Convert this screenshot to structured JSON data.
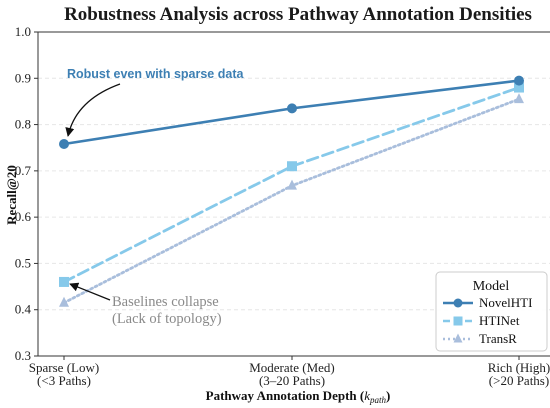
{
  "chart_data": {
    "type": "line",
    "title": "Robustness Analysis across Pathway Annotation Densities",
    "ylabel": "Recall@20",
    "xlabel_main": "Pathway Annotation Depth (",
    "xlabel_var": "k",
    "xlabel_sub": "path",
    "xlabel_close": ")",
    "ylim": [
      0.3,
      1.0
    ],
    "yticks": [
      "0.3",
      "0.4",
      "0.5",
      "0.6",
      "0.7",
      "0.8",
      "0.9",
      "1.0"
    ],
    "categories": [
      [
        "Sparse (Low)",
        "(<3 Paths)"
      ],
      [
        "Moderate (Med)",
        "(3–20 Paths)"
      ],
      [
        "Rich (High)",
        "(>20 Paths)"
      ]
    ],
    "grid": "horizontal dashed",
    "legend_title": "Model",
    "legend_position": "lower-right",
    "series": [
      {
        "name": "NovelHTI",
        "values": [
          0.758,
          0.835,
          0.895
        ],
        "color": "#3d7fb3",
        "marker": "circle",
        "style": "solid"
      },
      {
        "name": "HTINet",
        "values": [
          0.46,
          0.71,
          0.88
        ],
        "color": "#86c9ea",
        "marker": "square",
        "style": "dashed"
      },
      {
        "name": "TransR",
        "values": [
          0.415,
          0.668,
          0.855
        ],
        "color": "#a9bedc",
        "marker": "triangle",
        "style": "dotted"
      }
    ],
    "annotations": [
      {
        "text": "Robust even with sparse data",
        "color": "#3d7fb3",
        "series": 0,
        "point": 0
      },
      {
        "text_lines": [
          "Baselines collapse",
          "(Lack of topology)"
        ],
        "color": "#8a8a8a",
        "series": 1,
        "point": 0
      }
    ]
  }
}
